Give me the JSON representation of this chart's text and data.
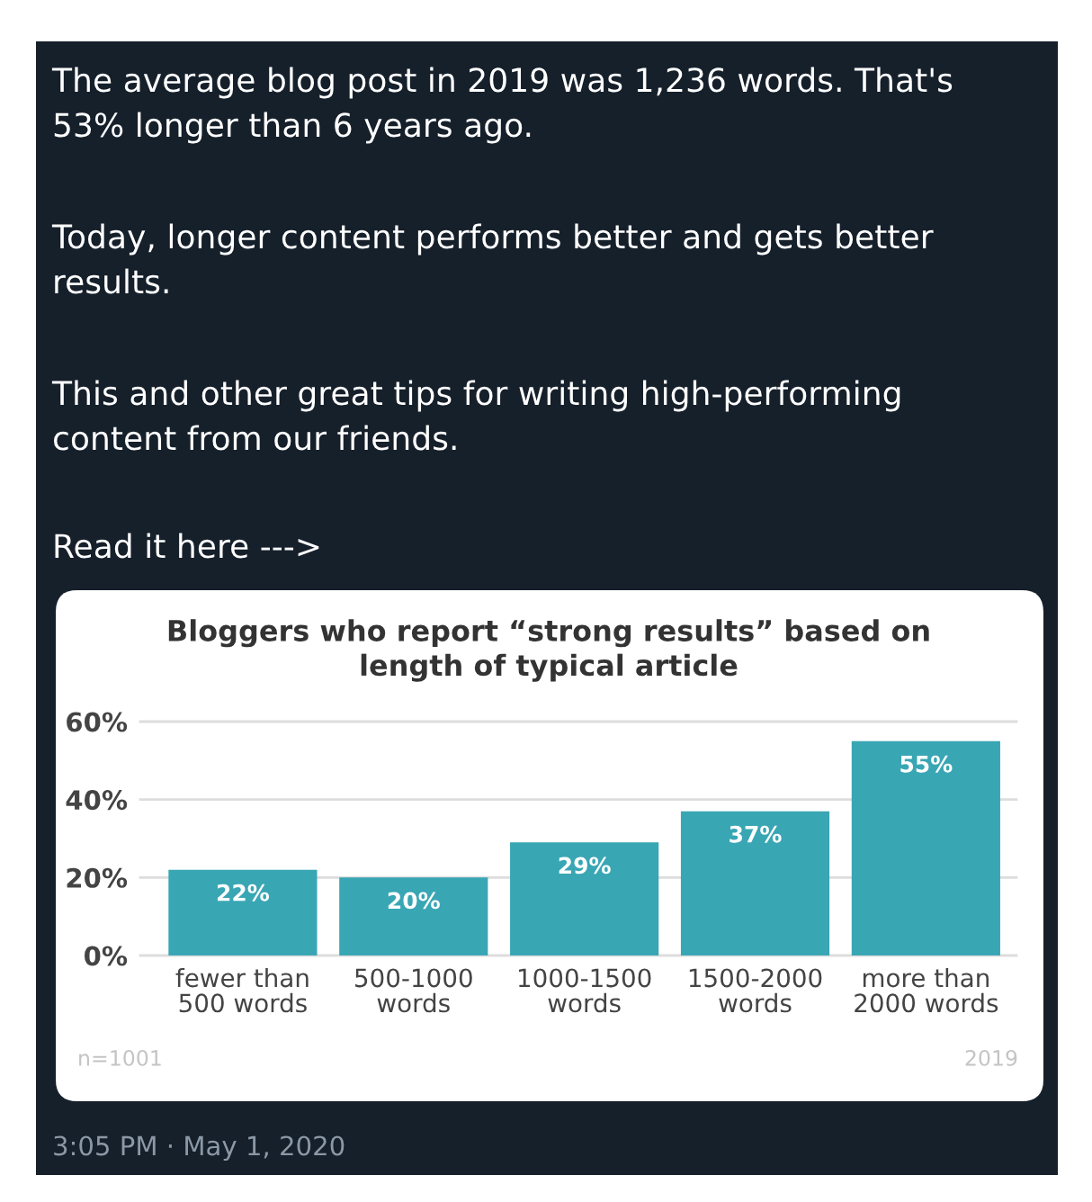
{
  "chart_data": {
    "type": "bar",
    "title": "Bloggers who report “strong results” based on\nlength of typical article",
    "categories": [
      "fewer than\n500 words",
      "500-1000\nwords",
      "1000-1500\nwords",
      "1500-2000\nwords",
      "more than\n2000 words"
    ],
    "values": [
      22,
      20,
      29,
      37,
      55
    ],
    "value_labels": [
      "22%",
      "20%",
      "29%",
      "37%",
      "55%"
    ],
    "color": "#39a6b4",
    "ylim": [
      0,
      60
    ],
    "yticks": [
      {
        "value": 0,
        "label": "0%"
      },
      {
        "value": 20,
        "label": "20%"
      },
      {
        "value": 40,
        "label": "40%"
      },
      {
        "value": 60,
        "label": "60%"
      }
    ],
    "grid": "y",
    "annotations": [
      "The average blog post in 2019 was 1,236 words. That's\n53% longer than 6 years ago.",
      "Today, longer content performs better and gets better\nresults.",
      "This and other great tips for writing high-performing\ncontent from our friends.",
      "Read it here --->",
      "n=1001",
      "2019",
      "3:05 PM · May 1, 2020"
    ]
  }
}
